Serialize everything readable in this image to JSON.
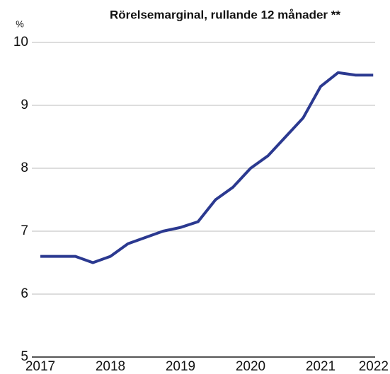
{
  "chart_data": {
    "type": "line",
    "title": "Rörelsemarginal, rullande 12 månader **",
    "y_unit": "%",
    "x": [
      2017,
      2017.25,
      2017.5,
      2017.75,
      2018,
      2018.25,
      2018.5,
      2018.75,
      2019,
      2019.25,
      2019.5,
      2019.75,
      2020,
      2020.25,
      2020.5,
      2020.75,
      2021,
      2021.25,
      2021.5,
      2021.75
    ],
    "series": [
      {
        "color": "#2b3990",
        "values": [
          6.6,
          6.6,
          6.6,
          6.5,
          6.6,
          6.8,
          6.9,
          7.0,
          7.06,
          7.15,
          7.5,
          7.7,
          8.0,
          8.2,
          8.5,
          8.8,
          9.3,
          9.52,
          9.48,
          9.48
        ]
      }
    ],
    "xlim": [
      2017,
      2022
    ],
    "xticks": [
      2017,
      2018,
      2019,
      2020,
      2021,
      2022
    ],
    "ylim": [
      5,
      10
    ],
    "yticks": [
      5,
      6,
      7,
      8,
      9,
      10
    ],
    "grid": true
  }
}
